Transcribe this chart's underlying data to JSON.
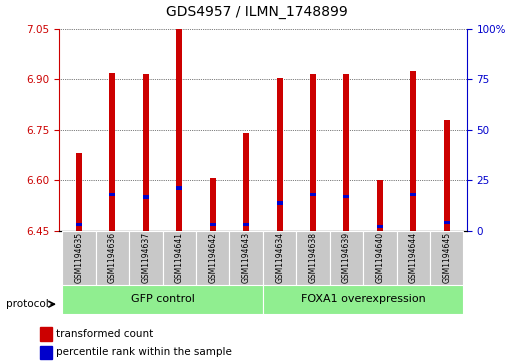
{
  "title": "GDS4957 / ILMN_1748899",
  "samples": [
    "GSM1194635",
    "GSM1194636",
    "GSM1194637",
    "GSM1194641",
    "GSM1194642",
    "GSM1194643",
    "GSM1194634",
    "GSM1194638",
    "GSM1194639",
    "GSM1194640",
    "GSM1194644",
    "GSM1194645"
  ],
  "red_tops": [
    6.68,
    6.92,
    6.915,
    7.05,
    6.605,
    6.74,
    6.905,
    6.915,
    6.915,
    6.6,
    6.925,
    6.78
  ],
  "blue_tops": [
    6.462,
    6.552,
    6.545,
    6.572,
    6.462,
    6.463,
    6.527,
    6.552,
    6.547,
    6.457,
    6.552,
    6.468
  ],
  "ymin": 6.45,
  "ymax": 7.05,
  "y_ticks_left": [
    6.45,
    6.6,
    6.75,
    6.9,
    7.05
  ],
  "y_ticks_right_vals": [
    0,
    25,
    50,
    75,
    100
  ],
  "group1_label": "GFP control",
  "group2_label": "FOXA1 overexpression",
  "group1_indices": [
    0,
    1,
    2,
    3,
    4,
    5
  ],
  "group2_indices": [
    6,
    7,
    8,
    9,
    10,
    11
  ],
  "protocol_label": "protocol",
  "red_color": "#cc0000",
  "blue_color": "#0000cc",
  "bar_width": 0.18,
  "left_tick_color": "#cc0000",
  "right_tick_color": "#0000cc",
  "group_box_color": "#90ee90",
  "sample_box_color": "#c8c8c8",
  "legend_red_label": "transformed count",
  "legend_blue_label": "percentile rank within the sample"
}
